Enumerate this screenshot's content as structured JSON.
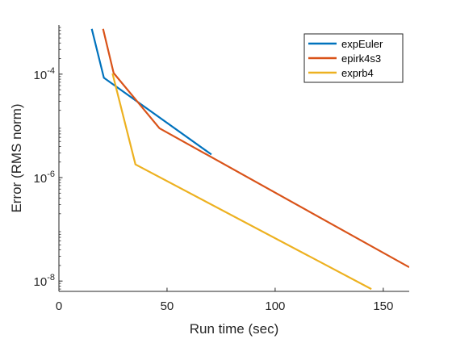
{
  "chart_data": {
    "type": "line",
    "xlabel": "Run time (sec)",
    "ylabel": "Error (RMS norm)",
    "xlim": [
      0,
      162
    ],
    "ylim_log10": [
      -8.2,
      -3.05
    ],
    "yscale": "log",
    "x_ticks": [
      0,
      50,
      100,
      150
    ],
    "x_tick_labels": [
      "0",
      "50",
      "100",
      "150"
    ],
    "y_ticks": [
      1e-08,
      1e-06,
      0.0001
    ],
    "y_tick_labels": [
      {
        "base": "10",
        "exp": "-8"
      },
      {
        "base": "10",
        "exp": "-6"
      },
      {
        "base": "10",
        "exp": "-4"
      }
    ],
    "grid": false,
    "legend_position": "top-right",
    "series": [
      {
        "name": "expEuler",
        "color": "#0072BD",
        "x": [
          15.2,
          20.8,
          70.5
        ],
        "y": [
          0.00075,
          8.5e-05,
          2.8e-06
        ]
      },
      {
        "name": "epirk4s3",
        "color": "#D95319",
        "x": [
          20.4,
          25.3,
          46.5,
          162
        ],
        "y": [
          0.00075,
          0.000105,
          9e-06,
          1.85e-08
        ]
      },
      {
        "name": "exprb4",
        "color": "#EDB120",
        "x": [
          24.8,
          35.4,
          144.5
        ],
        "y": [
          0.000103,
          1.8e-06,
          7e-09
        ]
      }
    ]
  }
}
